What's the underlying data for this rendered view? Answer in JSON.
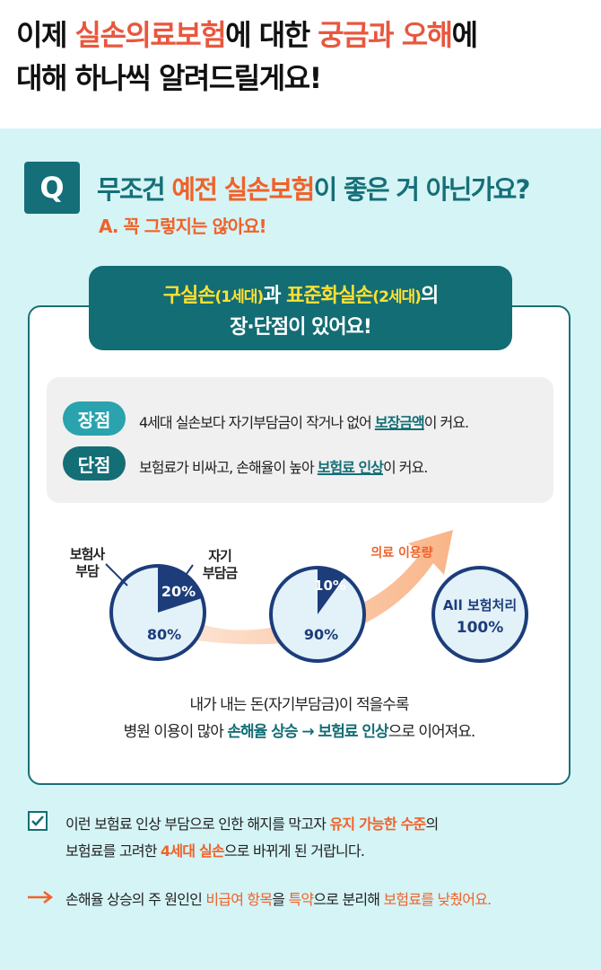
{
  "header": {
    "l1_a": "이제 ",
    "l1_b": "실손의료보험",
    "l1_c": "에 대한 ",
    "l1_d": "궁금과 오해",
    "l1_e": "에",
    "line2": "대해 하나씩 알려드릴게요!"
  },
  "question": {
    "badge": "Q",
    "t_a": "무조건 ",
    "t_b": "예전 실손보험",
    "t_c": "이 좋은 거 아닌가요?",
    "answer": "A. 꼭 그렇지는 않아요!"
  },
  "banner": {
    "a": "구실손",
    "a_sub": "(1세대)",
    "b": "과 ",
    "c": "표준화실손",
    "c_sub": "(2세대)",
    "d": "의",
    "line2": "장·단점이 있어요!"
  },
  "pros_cons": {
    "pro_label": "장점",
    "pro_a": "4세대 실손보다 자기부담금이 작거나 없어 ",
    "pro_b": "보장금액",
    "pro_c": "이 커요.",
    "con_label": "단점",
    "con_a": "보험료가 비싸고, 손해율이 높아 ",
    "con_b": "보험료 인상",
    "con_c": "이 커요."
  },
  "diagram": {
    "insurer_label_1": "보험사",
    "insurer_label_2": "부담",
    "self_label_1": "자기",
    "self_label_2": "부담금",
    "pie1_small": "20%",
    "pie1_big": "80%",
    "pie2_small": "10%",
    "pie2_big": "90%",
    "usage_label": "의료 이용량",
    "circle3_l1": "All 보험처리",
    "circle3_l2": "100%",
    "pie1_fraction": 0.2,
    "pie2_fraction": 0.1
  },
  "caption": {
    "line1": "내가 내는 돈(자기부담금)이 적을수록",
    "l2_a": "병원 이용이 많아 ",
    "l2_b": "손해율 상승 → 보험료 인상",
    "l2_c": "으로 이어져요."
  },
  "notes": {
    "n1_a": "이런 보험료 인상 부담으로 인한 해지를 막고자 ",
    "n1_b": "유지 가능한 수준",
    "n1_c": "의",
    "n2_a": "보험료를 고려한 ",
    "n2_b": "4세대 실손",
    "n2_c": "으로 바뀌게 된 거랍니다.",
    "n3_a": "손해율 상승의 주 원인인 ",
    "n3_b": "비급여 항목",
    "n3_c": "을 ",
    "n3_d": "특약",
    "n3_e": "으로 분리해 ",
    "n3_f": "보험료를 낮췄어요."
  },
  "colors": {
    "teal": "#146e76",
    "accent": "#f0622a",
    "bg": "#d5f4f6",
    "pie_dark": "#1c3d7a"
  }
}
